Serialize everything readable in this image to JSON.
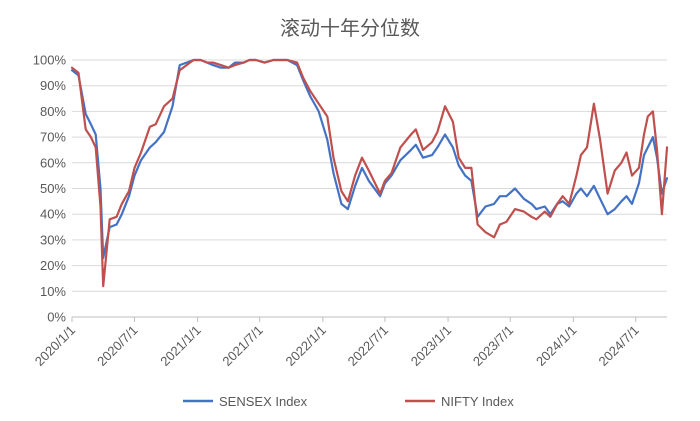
{
  "chart_data": {
    "type": "line",
    "title": "滚动十年分位数",
    "xlabel": "",
    "ylabel": "",
    "ylim": [
      0,
      100
    ],
    "y_tick_labels": [
      "0%",
      "10%",
      "20%",
      "30%",
      "40%",
      "50%",
      "60%",
      "70%",
      "80%",
      "90%",
      "100%"
    ],
    "x_tick_labels": [
      "2020/1/1",
      "2020/7/1",
      "2021/1/1",
      "2021/7/1",
      "2022/1/1",
      "2022/7/1",
      "2023/1/1",
      "2023/7/1",
      "2024/1/1",
      "2024/7/1"
    ],
    "x_range": [
      "2020-01-01",
      "2024-09-30"
    ],
    "grid": "horizontal",
    "legend": "bottom",
    "series": [
      {
        "name": "SENSEX Index",
        "color": "#4472C4",
        "x": [
          "2020-01-01",
          "2020-01-20",
          "2020-02-10",
          "2020-02-25",
          "2020-03-10",
          "2020-03-24",
          "2020-04-01",
          "2020-04-20",
          "2020-05-10",
          "2020-05-25",
          "2020-06-15",
          "2020-07-01",
          "2020-07-20",
          "2020-08-15",
          "2020-09-01",
          "2020-09-25",
          "2020-10-20",
          "2020-11-10",
          "2020-11-30",
          "2020-12-20",
          "2021-01-10",
          "2021-01-29",
          "2021-02-15",
          "2021-03-10",
          "2021-04-01",
          "2021-04-20",
          "2021-05-15",
          "2021-06-01",
          "2021-06-20",
          "2021-07-15",
          "2021-08-10",
          "2021-09-01",
          "2021-09-20",
          "2021-10-18",
          "2021-11-05",
          "2021-11-25",
          "2021-12-20",
          "2022-01-14",
          "2022-02-01",
          "2022-02-24",
          "2022-03-15",
          "2022-04-05",
          "2022-04-25",
          "2022-05-15",
          "2022-06-17",
          "2022-07-01",
          "2022-07-20",
          "2022-08-15",
          "2022-09-15",
          "2022-09-29",
          "2022-10-20",
          "2022-11-15",
          "2022-12-01",
          "2022-12-23",
          "2023-01-15",
          "2023-02-01",
          "2023-02-20",
          "2023-03-10",
          "2023-03-28",
          "2023-04-20",
          "2023-05-15",
          "2023-06-01",
          "2023-06-20",
          "2023-07-15",
          "2023-08-10",
          "2023-09-01",
          "2023-09-15",
          "2023-10-10",
          "2023-10-26",
          "2023-11-15",
          "2023-12-01",
          "2023-12-20",
          "2024-01-10",
          "2024-01-23",
          "2024-02-10",
          "2024-03-01",
          "2024-03-19",
          "2024-04-10",
          "2024-05-01",
          "2024-05-20",
          "2024-06-04",
          "2024-06-20",
          "2024-07-10",
          "2024-07-25",
          "2024-08-05",
          "2024-08-20",
          "2024-09-01",
          "2024-09-15",
          "2024-09-30"
        ],
        "values": [
          96,
          94,
          79,
          75,
          71,
          50,
          23,
          35,
          36,
          40,
          47,
          55,
          61,
          66,
          68,
          72,
          82,
          98,
          99,
          100,
          100,
          99,
          98,
          97,
          97,
          99,
          99,
          100,
          100,
          99,
          100,
          100,
          100,
          98,
          92,
          86,
          80,
          69,
          56,
          44,
          42,
          51,
          58,
          53,
          47,
          52,
          55,
          61,
          65,
          67,
          62,
          63,
          66,
          71,
          66,
          59,
          55,
          53,
          39,
          43,
          44,
          47,
          47,
          50,
          46,
          44,
          42,
          43,
          40,
          44,
          45,
          43,
          48,
          50,
          47,
          51,
          46,
          40,
          42,
          45,
          47,
          44,
          52,
          63,
          66,
          70,
          62,
          48,
          54
        ]
      },
      {
        "name": "NIFTY Index",
        "color": "#C0504D",
        "x": [
          "2020-01-01",
          "2020-01-20",
          "2020-02-10",
          "2020-02-25",
          "2020-03-10",
          "2020-03-24",
          "2020-04-01",
          "2020-04-20",
          "2020-05-10",
          "2020-05-25",
          "2020-06-15",
          "2020-07-01",
          "2020-07-20",
          "2020-08-15",
          "2020-09-01",
          "2020-09-25",
          "2020-10-20",
          "2020-11-10",
          "2020-11-30",
          "2020-12-20",
          "2021-01-10",
          "2021-01-29",
          "2021-02-15",
          "2021-03-10",
          "2021-04-01",
          "2021-04-20",
          "2021-05-15",
          "2021-06-01",
          "2021-06-20",
          "2021-07-15",
          "2021-08-10",
          "2021-09-01",
          "2021-09-20",
          "2021-10-18",
          "2021-11-05",
          "2021-11-25",
          "2021-12-20",
          "2022-01-14",
          "2022-02-01",
          "2022-02-24",
          "2022-03-15",
          "2022-04-05",
          "2022-04-25",
          "2022-05-15",
          "2022-06-17",
          "2022-07-01",
          "2022-07-20",
          "2022-08-15",
          "2022-09-15",
          "2022-09-29",
          "2022-10-20",
          "2022-11-15",
          "2022-12-01",
          "2022-12-23",
          "2023-01-15",
          "2023-02-01",
          "2023-02-20",
          "2023-03-10",
          "2023-03-28",
          "2023-04-20",
          "2023-05-15",
          "2023-06-01",
          "2023-06-20",
          "2023-07-15",
          "2023-08-10",
          "2023-09-01",
          "2023-09-15",
          "2023-10-10",
          "2023-10-26",
          "2023-11-15",
          "2023-12-01",
          "2023-12-20",
          "2024-01-10",
          "2024-01-23",
          "2024-02-10",
          "2024-03-01",
          "2024-03-19",
          "2024-04-10",
          "2024-05-01",
          "2024-05-20",
          "2024-06-04",
          "2024-06-20",
          "2024-07-10",
          "2024-07-25",
          "2024-08-05",
          "2024-08-20",
          "2024-09-01",
          "2024-09-15",
          "2024-09-30"
        ],
        "values": [
          97,
          95,
          73,
          70,
          66,
          43,
          12,
          38,
          39,
          44,
          49,
          58,
          64,
          74,
          75,
          82,
          85,
          96,
          98,
          100,
          100,
          99,
          99,
          98,
          97,
          98,
          99,
          100,
          100,
          99,
          100,
          100,
          100,
          99,
          93,
          88,
          83,
          78,
          62,
          49,
          45,
          55,
          62,
          57,
          48,
          53,
          56,
          66,
          71,
          73,
          65,
          68,
          72,
          82,
          76,
          62,
          58,
          58,
          36,
          33,
          31,
          36,
          37,
          42,
          41,
          39,
          38,
          41,
          39,
          44,
          47,
          44,
          55,
          63,
          66,
          83,
          69,
          48,
          57,
          60,
          64,
          55,
          58,
          71,
          78,
          80,
          65,
          40,
          66
        ]
      }
    ]
  }
}
